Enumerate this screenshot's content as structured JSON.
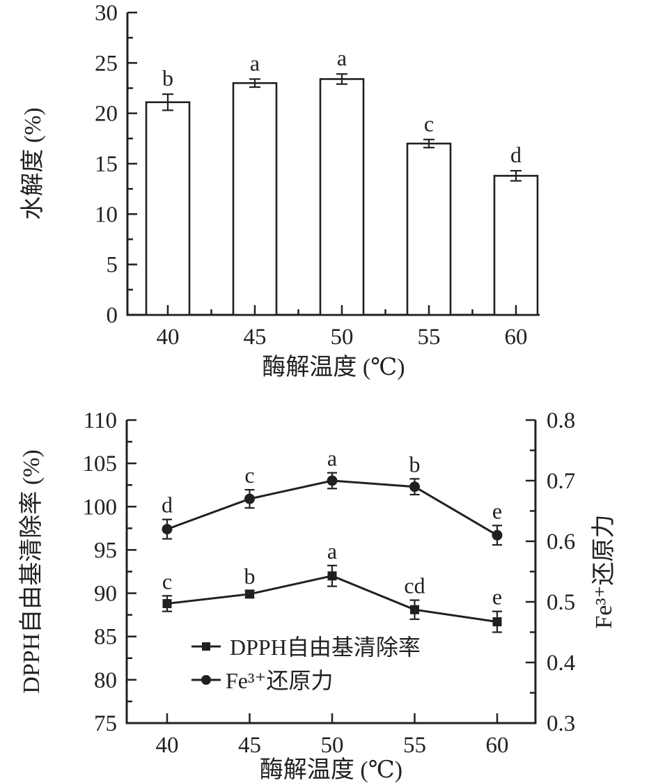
{
  "page": {
    "background": "#ffffff",
    "ink": "#231f20"
  },
  "chart_data": [
    {
      "id": "hydrolysis-bar-chart",
      "type": "bar",
      "title": "",
      "xlabel": "酶解温度 (℃)",
      "ylabel": "水解度 (%)",
      "categories": [
        "40",
        "45",
        "50",
        "55",
        "60"
      ],
      "values": [
        21.1,
        23.0,
        23.4,
        17.0,
        13.8
      ],
      "errors": [
        0.8,
        0.4,
        0.5,
        0.4,
        0.5
      ],
      "sig_labels": [
        "b",
        "a",
        "a",
        "c",
        "d"
      ],
      "ylim": [
        0,
        30
      ],
      "ytick_step": 5,
      "yminor_step": 2.5,
      "bar_fill": "#ffffff",
      "grid": false,
      "legend_position": "none"
    },
    {
      "id": "antioxidant-line-chart",
      "type": "line",
      "title": "",
      "xlabel": "酶解温度 (℃)",
      "categories": [
        "40",
        "45",
        "50",
        "55",
        "60"
      ],
      "left_axis": {
        "label": "DPPH自由基清除率 (%)",
        "lim": [
          75,
          110
        ],
        "tick_step": 5,
        "minor_step": 2.5
      },
      "right_axis": {
        "label": "Fe³⁺还原力",
        "lim": [
          0.3,
          0.8
        ],
        "tick_step": 0.1,
        "minor_step": 0.05,
        "decimals": 1
      },
      "series": [
        {
          "name": "DPPH自由基清除率",
          "axis": "left",
          "marker": "square",
          "values": [
            88.8,
            89.9,
            92.0,
            88.1,
            86.7
          ],
          "errors": [
            0.9,
            0.4,
            1.2,
            1.1,
            1.2
          ],
          "sig_labels": [
            "c",
            "b",
            "a",
            "cd",
            "e"
          ]
        },
        {
          "name": "Fe³⁺还原力",
          "axis": "right",
          "marker": "circle",
          "values": [
            0.62,
            0.67,
            0.7,
            0.69,
            0.61
          ],
          "errors": [
            0.016,
            0.015,
            0.013,
            0.013,
            0.016
          ],
          "sig_labels": [
            "d",
            "c",
            "a",
            "b",
            "e"
          ]
        }
      ],
      "legend": {
        "position": "inside-bottom-left",
        "items": [
          "DPPH自由基清除率",
          "Fe³⁺还原力"
        ]
      },
      "grid": false
    }
  ]
}
